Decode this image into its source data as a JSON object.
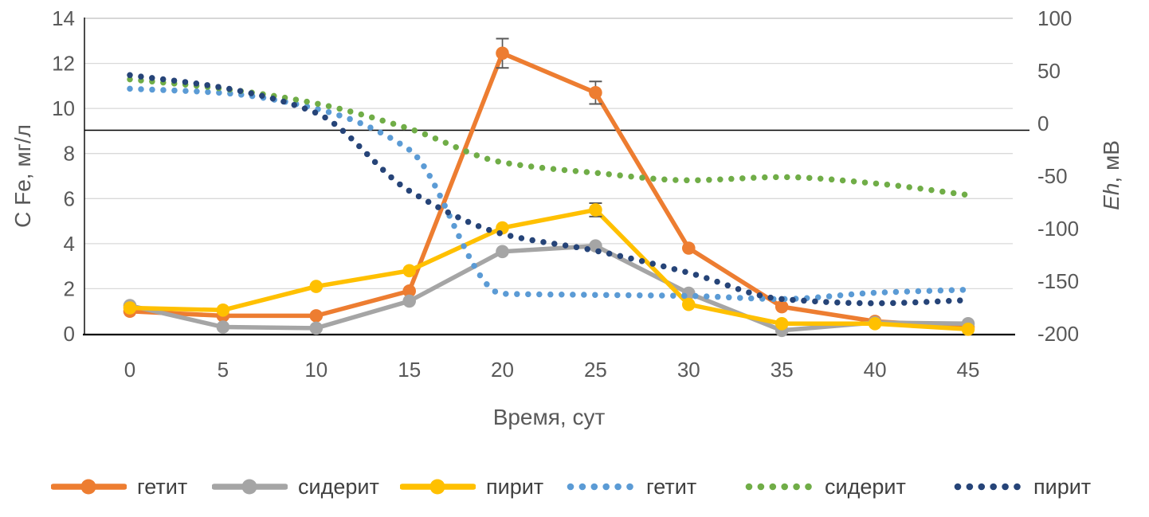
{
  "chart_data": {
    "type": "line",
    "title": "",
    "xlabel": "Время, сут",
    "ylabel_left": "С Fe, мг/л",
    "ylabel_right": "Eh, мВ",
    "ylabel_right_italic_part": "Eh",
    "ylabel_right_regular_part": ", мВ",
    "x_ticks": [
      0,
      5,
      10,
      15,
      20,
      25,
      30,
      35,
      40,
      45
    ],
    "y_left_ticks": [
      0,
      2,
      4,
      6,
      8,
      10,
      12,
      14
    ],
    "y_right_ticks": [
      100,
      50,
      0,
      -50,
      -100,
      -150,
      -200
    ],
    "y_left_range": [
      0,
      14
    ],
    "y_right_range": [
      -200,
      100
    ],
    "grid": "horizontal-on",
    "legend_position": "bottom",
    "eh_zero_line": true,
    "x": [
      0,
      5,
      10,
      15,
      20,
      25,
      30,
      35,
      40,
      45
    ],
    "series": [
      {
        "name": "гетит",
        "axis": "left",
        "unit": "мг/л",
        "line": "solid",
        "color": "#ED7D31",
        "values": [
          1.0,
          0.8,
          0.8,
          1.9,
          12.45,
          10.7,
          3.8,
          1.2,
          0.55,
          0.3
        ],
        "error_bars": [
          {
            "x": 20,
            "plus": 0.65,
            "minus": 0.65
          },
          {
            "x": 25,
            "plus": 0.5,
            "minus": 0.5
          }
        ]
      },
      {
        "name": "сидерит",
        "axis": "left",
        "unit": "мг/л",
        "line": "solid",
        "color": "#A5A5A5",
        "values": [
          1.25,
          0.3,
          0.25,
          1.45,
          3.65,
          3.9,
          1.8,
          0.15,
          0.5,
          0.45
        ],
        "error_bars": []
      },
      {
        "name": "пирит",
        "axis": "left",
        "unit": "мг/л",
        "line": "solid",
        "color": "#FFC000",
        "values": [
          1.15,
          1.05,
          2.1,
          2.8,
          4.7,
          5.5,
          1.3,
          0.45,
          0.45,
          0.2
        ],
        "error_bars": [
          {
            "x": 25,
            "plus": 0.3,
            "minus": 0.3
          }
        ]
      },
      {
        "name": "гетит",
        "axis": "right",
        "unit": "мВ",
        "line": "dotted",
        "color": "#5B9BD5",
        "values": [
          33,
          29,
          14,
          -25,
          -162,
          -163,
          -164,
          -167,
          -161,
          -158
        ],
        "error_bars": []
      },
      {
        "name": "сидерит",
        "axis": "right",
        "unit": "мВ",
        "line": "dotted",
        "color": "#70AD47",
        "values": [
          42,
          33,
          19,
          -5,
          -37,
          -47,
          -54,
          -51,
          -57,
          -68
        ],
        "error_bars": []
      },
      {
        "name": "пирит",
        "axis": "right",
        "unit": "мВ",
        "line": "dotted",
        "color": "#264478",
        "values": [
          46,
          34,
          10,
          -64,
          -105,
          -121,
          -142,
          -167,
          -171,
          -168
        ],
        "error_bars": []
      }
    ]
  },
  "style": {
    "tick_label_color": "#595959",
    "axis_title_color": "#595959",
    "legend_label_color": "#404040",
    "gridline_color": "#D9D9D9",
    "axis_line_color": "#000000",
    "error_bar_color": "#595959"
  }
}
